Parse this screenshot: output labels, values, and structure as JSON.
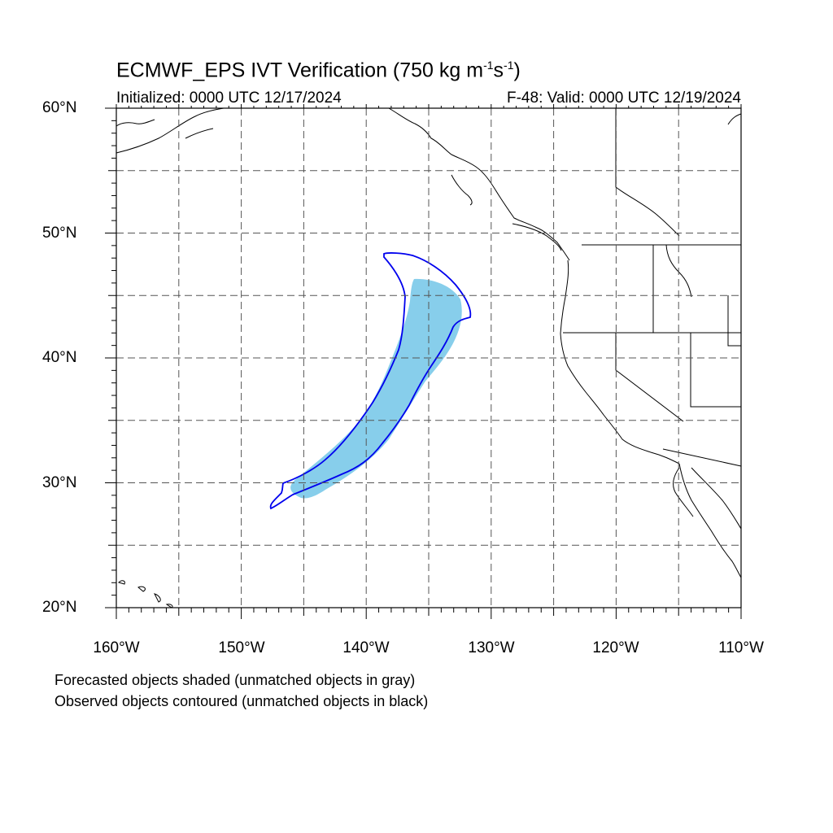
{
  "map": {
    "title_prefix": "ECMWF_EPS IVT Verification (750 kg m",
    "title_exp1": "-1",
    "title_mid": "s",
    "title_exp2": "-1",
    "title_suffix": ")",
    "initialized": "Initialized: 0000 UTC 12/17/2024",
    "valid": "F-48: Valid: 0000 UTC 12/19/2024",
    "lat_labels": [
      "60°N",
      "50°N",
      "40°N",
      "30°N",
      "20°N"
    ],
    "lon_labels": [
      "160°W",
      "150°W",
      "140°W",
      "130°W",
      "120°W",
      "110°W"
    ],
    "footnote_1": "Forecasted objects shaded (unmatched objects in gray)",
    "footnote_2": "Observed objects contoured (unmatched objects in black)",
    "extent": {
      "lon_min": -160,
      "lon_max": -110,
      "lat_min": 20,
      "lat_max": 60
    },
    "colors": {
      "forecast_fill": "#87ceeb",
      "observed_contour": "#0000ee",
      "coastline": "#000000",
      "grid": "#555555"
    }
  }
}
